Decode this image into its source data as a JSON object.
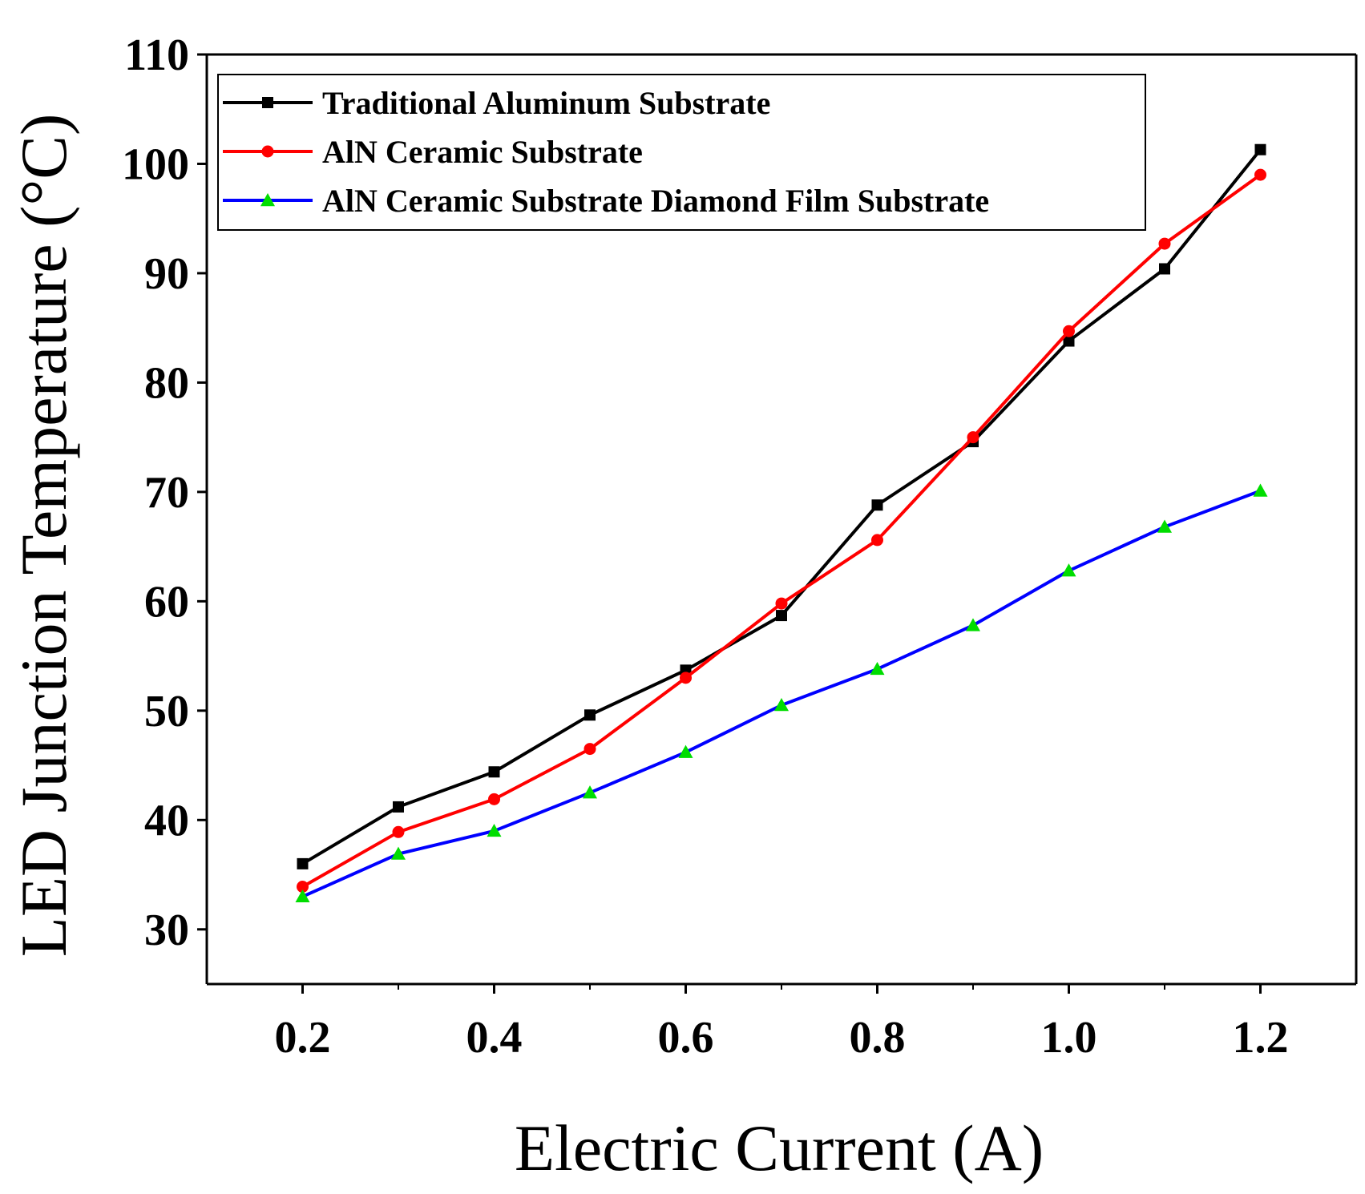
{
  "chart_data": {
    "type": "line",
    "title": "",
    "xlabel": "Electric Current (A)",
    "ylabel": "LED Junction Temperature (°C)",
    "xlim": [
      0.1,
      1.3
    ],
    "ylim": [
      25,
      110
    ],
    "x_ticks": [
      0.2,
      0.4,
      0.6,
      0.8,
      1.0,
      1.2
    ],
    "x_tick_labels": [
      "0.2",
      "0.4",
      "0.6",
      "0.8",
      "1.0",
      "1.2"
    ],
    "y_ticks": [
      30,
      40,
      50,
      60,
      70,
      80,
      90,
      100,
      110
    ],
    "y_tick_labels": [
      "30",
      "40",
      "50",
      "60",
      "70",
      "80",
      "90",
      "100",
      "110"
    ],
    "grid": false,
    "legend_position": "top-left",
    "x": [
      0.2,
      0.3,
      0.4,
      0.5,
      0.6,
      0.7,
      0.8,
      0.9,
      1.0,
      1.1,
      1.2
    ],
    "series": [
      {
        "name": "Traditional Aluminum Substrate",
        "color": "#000000",
        "marker": "square",
        "values": [
          36.0,
          41.2,
          44.4,
          49.6,
          53.7,
          58.7,
          68.8,
          74.6,
          83.8,
          90.4,
          101.3
        ]
      },
      {
        "name": "AlN Ceramic Substrate",
        "color": "#ff0000",
        "marker": "circle",
        "values": [
          33.9,
          38.9,
          41.9,
          46.5,
          53.0,
          59.8,
          65.6,
          75.0,
          84.7,
          92.7,
          99.0
        ]
      },
      {
        "name": "AlN Ceramic Substrate Diamond Film Substrate",
        "color": "#0000ff",
        "marker_color": "#00dd00",
        "marker": "triangle",
        "values": [
          33.0,
          36.9,
          39.0,
          42.5,
          46.2,
          50.5,
          53.8,
          57.8,
          62.8,
          66.8,
          70.1
        ]
      }
    ]
  }
}
